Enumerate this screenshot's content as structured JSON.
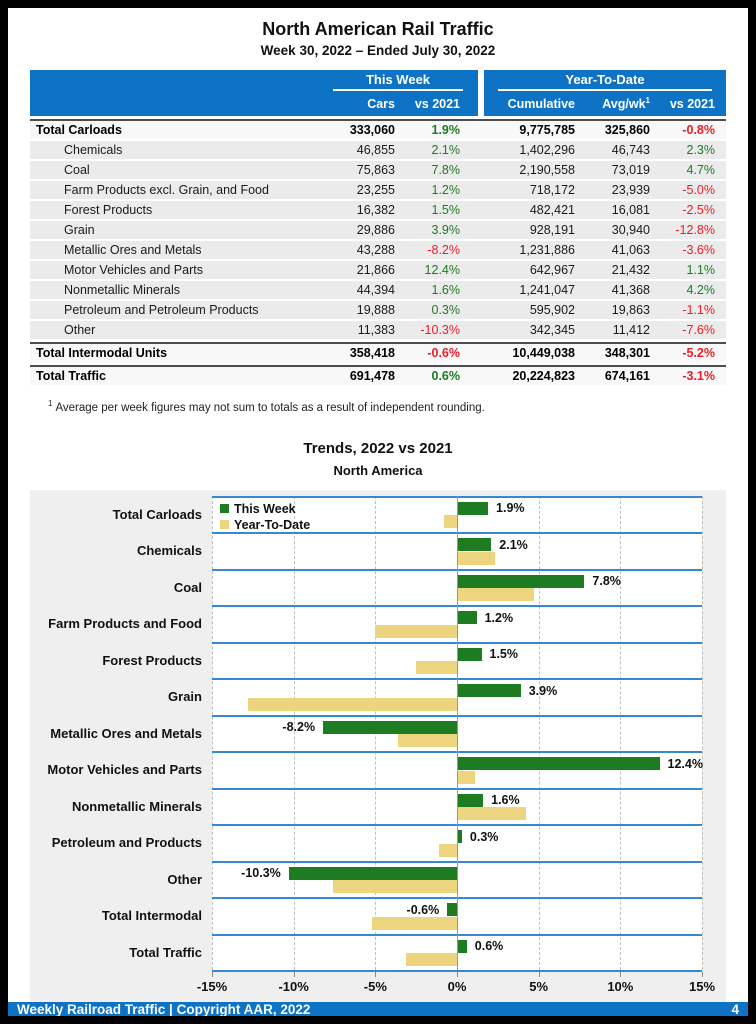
{
  "header": {
    "title": "North American Rail Traffic",
    "subtitle": "Week 30, 2022 – Ended July 30, 2022"
  },
  "table": {
    "group_headers": {
      "this_week": "This Week",
      "year_to_date": "Year-To-Date"
    },
    "columns": {
      "cars": "Cars",
      "week_vs": "vs 2021",
      "cumulative": "Cumulative",
      "avg_wk": "Avg/wk",
      "avg_wk_sup": "1",
      "ytd_vs": "vs 2021"
    },
    "rows": [
      {
        "label": "Total Carloads",
        "total": true,
        "cars": "333,060",
        "week_vs": "1.9%",
        "cumulative": "9,775,785",
        "avg_wk": "325,860",
        "ytd_vs": "-0.8%"
      },
      {
        "label": "Chemicals",
        "cars": "46,855",
        "week_vs": "2.1%",
        "cumulative": "1,402,296",
        "avg_wk": "46,743",
        "ytd_vs": "2.3%"
      },
      {
        "label": "Coal",
        "cars": "75,863",
        "week_vs": "7.8%",
        "cumulative": "2,190,558",
        "avg_wk": "73,019",
        "ytd_vs": "4.7%"
      },
      {
        "label": "Farm Products excl. Grain, and Food",
        "cars": "23,255",
        "week_vs": "1.2%",
        "cumulative": "718,172",
        "avg_wk": "23,939",
        "ytd_vs": "-5.0%"
      },
      {
        "label": "Forest Products",
        "cars": "16,382",
        "week_vs": "1.5%",
        "cumulative": "482,421",
        "avg_wk": "16,081",
        "ytd_vs": "-2.5%"
      },
      {
        "label": "Grain",
        "cars": "29,886",
        "week_vs": "3.9%",
        "cumulative": "928,191",
        "avg_wk": "30,940",
        "ytd_vs": "-12.8%"
      },
      {
        "label": "Metallic Ores and Metals",
        "cars": "43,288",
        "week_vs": "-8.2%",
        "cumulative": "1,231,886",
        "avg_wk": "41,063",
        "ytd_vs": "-3.6%"
      },
      {
        "label": "Motor Vehicles and Parts",
        "cars": "21,866",
        "week_vs": "12.4%",
        "cumulative": "642,967",
        "avg_wk": "21,432",
        "ytd_vs": "1.1%"
      },
      {
        "label": "Nonmetallic Minerals",
        "cars": "44,394",
        "week_vs": "1.6%",
        "cumulative": "1,241,047",
        "avg_wk": "41,368",
        "ytd_vs": "4.2%"
      },
      {
        "label": "Petroleum and Petroleum Products",
        "cars": "19,888",
        "week_vs": "0.3%",
        "cumulative": "595,902",
        "avg_wk": "19,863",
        "ytd_vs": "-1.1%"
      },
      {
        "label": "Other",
        "cars": "11,383",
        "week_vs": "-10.3%",
        "cumulative": "342,345",
        "avg_wk": "11,412",
        "ytd_vs": "-7.6%"
      },
      {
        "label": "Total Intermodal Units",
        "total": true,
        "cars": "358,418",
        "week_vs": "-0.6%",
        "cumulative": "10,449,038",
        "avg_wk": "348,301",
        "ytd_vs": "-5.2%"
      },
      {
        "label": "Total Traffic",
        "total": true,
        "cars": "691,478",
        "week_vs": "0.6%",
        "cumulative": "20,224,823",
        "avg_wk": "674,161",
        "ytd_vs": "-3.1%"
      }
    ],
    "footnote_sup": "1",
    "footnote": "Average per week figures may not sum to totals as a result of independent rounding."
  },
  "chart_data": {
    "type": "bar",
    "orientation": "horizontal",
    "title": "Trends, 2022 vs 2021",
    "subtitle": "North America",
    "categories": [
      "Total Carloads",
      "Chemicals",
      "Coal",
      "Farm Products and Food",
      "Forest Products",
      "Grain",
      "Metallic Ores and Metals",
      "Motor Vehicles and Parts",
      "Nonmetallic Minerals",
      "Petroleum and Products",
      "Other",
      "Total Intermodal",
      "Total Traffic"
    ],
    "series": [
      {
        "name": "This Week",
        "color": "#1e7b21",
        "values": [
          1.9,
          2.1,
          7.8,
          1.2,
          1.5,
          3.9,
          -8.2,
          12.4,
          1.6,
          0.3,
          -10.3,
          -0.6,
          0.6
        ]
      },
      {
        "name": "Year-To-Date",
        "color": "#edd57f",
        "values": [
          -0.8,
          2.3,
          4.7,
          -5.0,
          -2.5,
          -12.8,
          -3.6,
          1.1,
          4.2,
          -1.1,
          -7.6,
          -5.2,
          -3.1
        ]
      }
    ],
    "xlim": [
      -15,
      15
    ],
    "tick_values": [
      -15,
      -10,
      -5,
      0,
      5,
      10,
      15
    ],
    "ticks": [
      "-15%",
      "-10%",
      "-5%",
      "0%",
      "5%",
      "10%",
      "15%"
    ],
    "legend_position": "top-left",
    "grid": true,
    "value_labels_series": "This Week"
  },
  "footer": {
    "left": "Weekly Railroad Traffic | Copyright AAR, 2022",
    "page": "4"
  },
  "colors": {
    "accent_blue": "#0e72c5",
    "chart_separator_blue": "#3489d2",
    "positive_green": "#1e7b21",
    "negative_red": "#ed1c24",
    "bar_green": "#1e7b21",
    "bar_yellow": "#edd57f"
  }
}
